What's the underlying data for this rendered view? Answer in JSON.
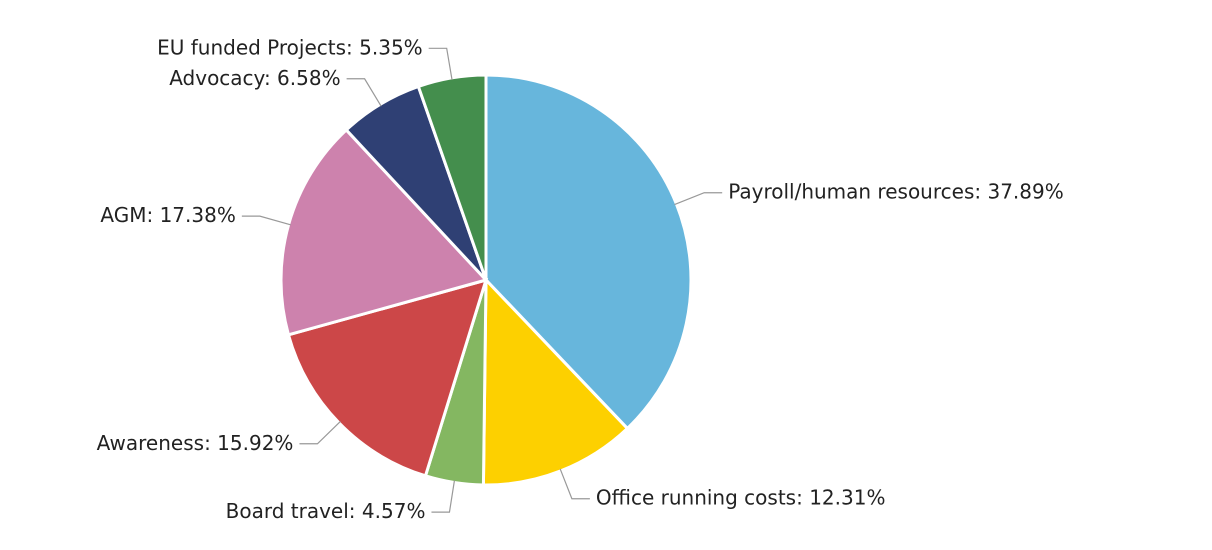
{
  "chart_data": {
    "type": "pie",
    "categories": [
      "Payroll/human resources",
      "Office running costs",
      "Board travel",
      "Awareness",
      "AGM",
      "Advocacy",
      "EU funded Projects"
    ],
    "values": [
      37.89,
      12.31,
      4.57,
      15.92,
      17.38,
      6.58,
      5.35
    ],
    "value_labels": [
      "37.89%",
      "12.31%",
      "4.57%",
      "15.92%",
      "17.38%",
      "6.58%",
      "5.35%"
    ],
    "label_separator": ": ",
    "colors": [
      "#67b6dc",
      "#fdd000",
      "#84b761",
      "#cc4748",
      "#cd82ad",
      "#2f4074",
      "#448e4d"
    ]
  }
}
